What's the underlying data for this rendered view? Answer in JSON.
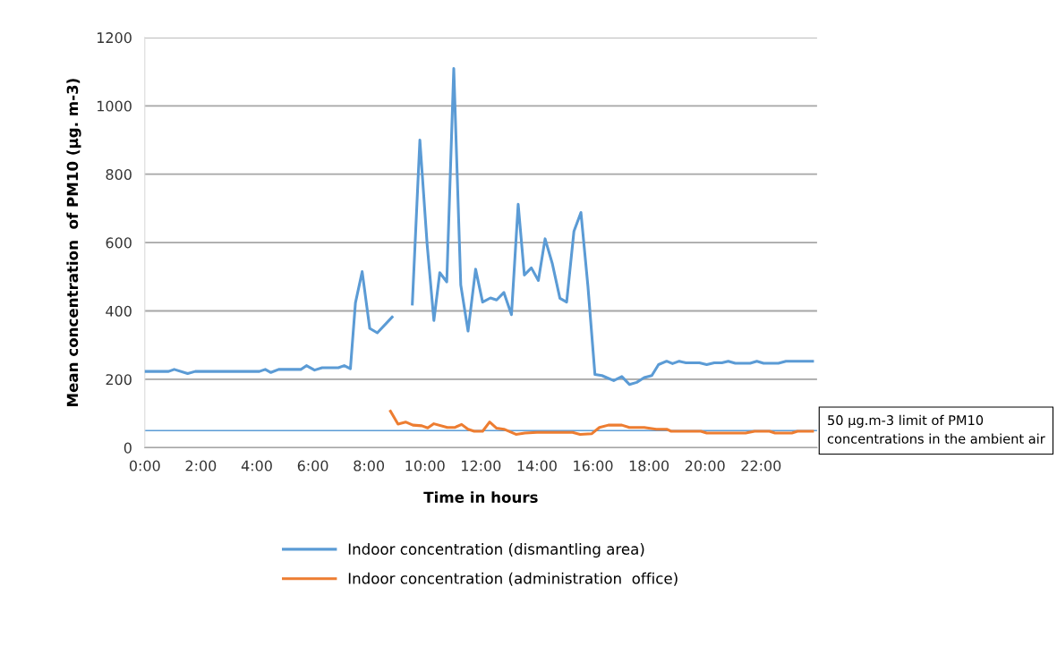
{
  "chart_data": {
    "type": "line",
    "xlabel": "Time in hours",
    "ylabel": "Mean concentration  of PM10 (µg. m-3)",
    "xlim": [
      0,
      24
    ],
    "xticks": [
      {
        "value": 0,
        "label": "0:00"
      },
      {
        "value": 2,
        "label": "2:00"
      },
      {
        "value": 4,
        "label": "4:00"
      },
      {
        "value": 6,
        "label": "6:00"
      },
      {
        "value": 8,
        "label": "8:00"
      },
      {
        "value": 10,
        "label": "10:00"
      },
      {
        "value": 12,
        "label": "12:00"
      },
      {
        "value": 14,
        "label": "14:00"
      },
      {
        "value": 16,
        "label": "16:00"
      },
      {
        "value": 18,
        "label": "18:00"
      },
      {
        "value": 20,
        "label": "20:00"
      },
      {
        "value": 22,
        "label": "22:00"
      }
    ],
    "ylim": [
      0,
      1200
    ],
    "yticks": [
      0,
      200,
      400,
      600,
      800,
      1000,
      1200
    ],
    "grid": "y",
    "legend": "bottom",
    "line_style": "solid",
    "marker": "none",
    "series": [
      {
        "name": "Indoor concentration (dismantling area)",
        "color": "#5b9bd5",
        "x": [
          0.0,
          0.85,
          1.05,
          1.53,
          1.8,
          4.09,
          4.3,
          4.5,
          4.78,
          5.58,
          5.77,
          6.06,
          6.33,
          6.91,
          7.12,
          7.34,
          7.52,
          7.76,
          8.03,
          8.3,
          8.83,
          9.2,
          9.55,
          9.82,
          10.08,
          10.32,
          10.53,
          10.78,
          11.03,
          11.28,
          11.54,
          11.81,
          12.06,
          12.34,
          12.56,
          12.82,
          13.09,
          13.33,
          13.55,
          13.8,
          14.05,
          14.29,
          14.55,
          14.82,
          15.06,
          15.32,
          15.57,
          15.82,
          16.07,
          16.32,
          16.74,
          17.03,
          17.3,
          17.56,
          17.83,
          18.1,
          18.34,
          18.63,
          18.84,
          19.08,
          19.32,
          19.8,
          20.06,
          20.33,
          20.6,
          20.83,
          21.08,
          21.61,
          21.85,
          22.09,
          22.62,
          22.89,
          23.84
        ],
        "values": [
          223,
          223,
          229,
          217,
          223,
          223,
          229,
          220,
          229,
          229,
          240,
          227,
          234,
          234,
          240,
          231,
          424,
          515,
          349,
          336,
          382,
          null,
          420,
          900,
          594,
          372,
          512,
          485,
          1109,
          476,
          341,
          522,
          426,
          438,
          432,
          454,
          389,
          712,
          505,
          526,
          489,
          611,
          538,
          437,
          426,
          633,
          688,
          472,
          214,
          211,
          196,
          208,
          185,
          191,
          205,
          211,
          243,
          253,
          246,
          253,
          248,
          248,
          243,
          248,
          248,
          253,
          247,
          247,
          253,
          247,
          247,
          253,
          253
        ]
      },
      {
        "name": "Indoor concentration (administration  office)",
        "color": "#ed7d31",
        "x": [
          8.77,
          9.04,
          9.31,
          9.57,
          9.89,
          10.1,
          10.32,
          10.8,
          11.06,
          11.31,
          11.54,
          11.76,
          12.06,
          12.31,
          12.56,
          12.82,
          13.25,
          13.57,
          14.0,
          15.27,
          15.54,
          15.96,
          16.23,
          16.55,
          17.03,
          17.3,
          17.83,
          18.26,
          18.63,
          18.79,
          19.85,
          20.06,
          21.45,
          21.77,
          22.3,
          22.5,
          23.1,
          23.3,
          23.84
        ],
        "values": [
          107,
          69,
          75,
          66,
          64,
          58,
          70,
          59,
          59,
          68,
          54,
          48,
          48,
          75,
          57,
          54,
          39,
          43,
          45,
          45,
          39,
          41,
          59,
          66,
          66,
          59,
          59,
          54,
          54,
          48,
          48,
          43,
          43,
          48,
          48,
          43,
          43,
          48,
          48
        ]
      }
    ],
    "ref_lines": [
      {
        "axis": "y",
        "value": 50,
        "label": "50 µg.m-3 limit of PM10 concentrations in the ambient air",
        "color": "#5b9bd5"
      }
    ]
  }
}
